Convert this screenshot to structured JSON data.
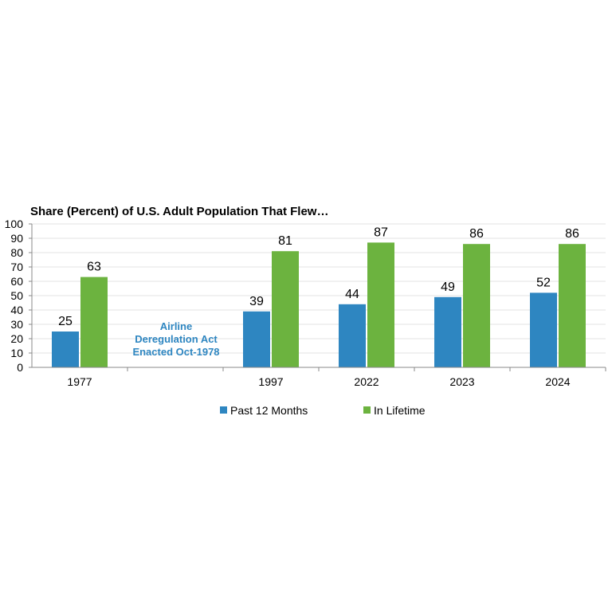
{
  "chart_data": {
    "type": "bar",
    "title": "Share (Percent) of U.S. Adult Population That Flew…",
    "categories": [
      "1977",
      "",
      "1997",
      "2022",
      "2023",
      "2024"
    ],
    "series": [
      {
        "name": "Past 12 Months",
        "color": "#2E86C1",
        "values": [
          25,
          null,
          39,
          44,
          49,
          52
        ]
      },
      {
        "name": "In Lifetime",
        "color": "#6CB33F",
        "values": [
          63,
          null,
          81,
          87,
          86,
          86
        ]
      }
    ],
    "ylim": [
      0,
      100
    ],
    "yticks": [
      0,
      10,
      20,
      30,
      40,
      50,
      60,
      70,
      80,
      90,
      100
    ],
    "xlabel": "",
    "ylabel": "",
    "legend": "bottom",
    "grid": true,
    "annotation": {
      "lines": [
        "Airline",
        "Deregulation Act",
        "Enacted Oct-1978"
      ],
      "color": "#2E86C1"
    }
  }
}
